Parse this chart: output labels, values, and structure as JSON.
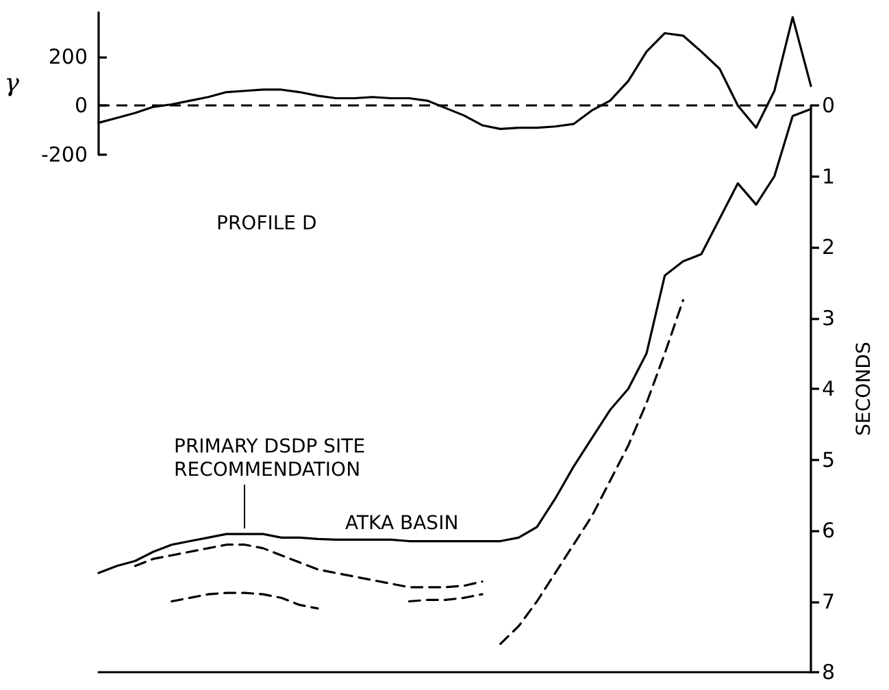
{
  "chart_data": [
    {
      "type": "line",
      "ylabel": "γ",
      "categories": [
        null,
        null,
        null,
        null,
        null,
        null,
        null,
        null,
        null,
        null,
        null,
        null,
        null,
        null,
        null,
        null,
        null,
        null,
        null,
        null,
        null,
        null,
        null,
        null,
        null,
        null,
        null,
        null,
        null,
        null,
        null,
        null,
        null,
        null,
        null,
        null,
        null,
        null,
        null,
        null
      ],
      "series": [
        {
          "color": "#000000",
          "values": [
            -70,
            -50,
            -30,
            -5,
            5,
            20,
            35,
            55,
            60,
            65,
            65,
            55,
            40,
            30,
            30,
            35,
            30,
            30,
            20,
            -10,
            -40,
            -80,
            -95,
            -90,
            -90,
            -85,
            -75,
            -20,
            20,
            100,
            220,
            295,
            285,
            220,
            150,
            0,
            -90,
            60,
            360,
            80
          ]
        }
      ],
      "ylim": [
        -200,
        380
      ],
      "yticks": [
        -200,
        0,
        200
      ],
      "tick_labels": "y",
      "grid": false,
      "marker": "none",
      "line_style": "solid",
      "ref_lines": [
        {
          "axis": "y",
          "value": 0,
          "line_style": "dashed",
          "color": "#000000"
        }
      ]
    },
    {
      "type": "line",
      "ylabel": "SECONDS",
      "categories": [
        null,
        null,
        null,
        null,
        null,
        null,
        null,
        null,
        null,
        null,
        null,
        null,
        null,
        null,
        null,
        null,
        null,
        null,
        null,
        null,
        null,
        null,
        null,
        null,
        null,
        null,
        null,
        null,
        null,
        null,
        null,
        null,
        null,
        null,
        null,
        null,
        null,
        null,
        null,
        null
      ],
      "series": [
        {
          "color": "#000000",
          "line_style": "solid",
          "values": [
            6.6,
            6.5,
            6.43,
            6.3,
            6.2,
            6.15,
            6.1,
            6.05,
            6.05,
            6.05,
            6.1,
            6.1,
            6.12,
            6.13,
            6.13,
            6.13,
            6.13,
            6.15,
            6.15,
            6.15,
            6.15,
            6.15,
            6.15,
            6.1,
            5.95,
            5.55,
            5.1,
            4.7,
            4.3,
            4.0,
            3.5,
            2.4,
            2.2,
            2.1,
            1.6,
            1.1,
            1.4,
            1.0,
            0.15,
            0.05
          ]
        },
        {
          "color": "#000000",
          "line_style": "dashed",
          "values": [
            null,
            null,
            6.5,
            6.4,
            6.35,
            6.3,
            6.25,
            6.2,
            6.2,
            6.25,
            6.35,
            6.45,
            6.55,
            6.6,
            6.65,
            6.7,
            6.75,
            6.8,
            6.8,
            6.8,
            6.78,
            6.72,
            null,
            null,
            null,
            null,
            null,
            null,
            null,
            null,
            null,
            null,
            null,
            null,
            null,
            null,
            null,
            null,
            null,
            null
          ]
        },
        {
          "color": "#000000",
          "line_style": "dashed",
          "values": [
            null,
            null,
            null,
            null,
            7.0,
            6.95,
            6.9,
            6.88,
            6.88,
            6.9,
            6.95,
            7.05,
            7.1,
            null,
            null,
            null,
            null,
            7.0,
            6.98,
            6.98,
            6.95,
            6.9,
            null,
            null,
            null,
            null,
            null,
            null,
            null,
            null,
            null,
            null,
            null,
            null,
            null,
            null,
            null,
            null,
            null,
            null
          ]
        },
        {
          "color": "#000000",
          "line_style": "dashed",
          "values": [
            null,
            null,
            null,
            null,
            null,
            null,
            null,
            null,
            null,
            null,
            null,
            null,
            null,
            null,
            null,
            null,
            null,
            null,
            null,
            null,
            null,
            null,
            7.6,
            7.35,
            7.0,
            6.6,
            6.2,
            5.8,
            5.3,
            4.8,
            4.2,
            3.5,
            2.75,
            null,
            null,
            null,
            null,
            null,
            null,
            null
          ]
        }
      ],
      "ylim": [
        8,
        0
      ],
      "yticks": [
        0,
        1,
        2,
        3,
        4,
        5,
        6,
        7,
        8
      ],
      "tick_labels": "y",
      "grid": false,
      "marker": "none",
      "annotations": [
        "PROFILE D",
        "PRIMARY DSDP SITE RECOMMENDATION",
        "ATKA BASIN"
      ]
    }
  ]
}
